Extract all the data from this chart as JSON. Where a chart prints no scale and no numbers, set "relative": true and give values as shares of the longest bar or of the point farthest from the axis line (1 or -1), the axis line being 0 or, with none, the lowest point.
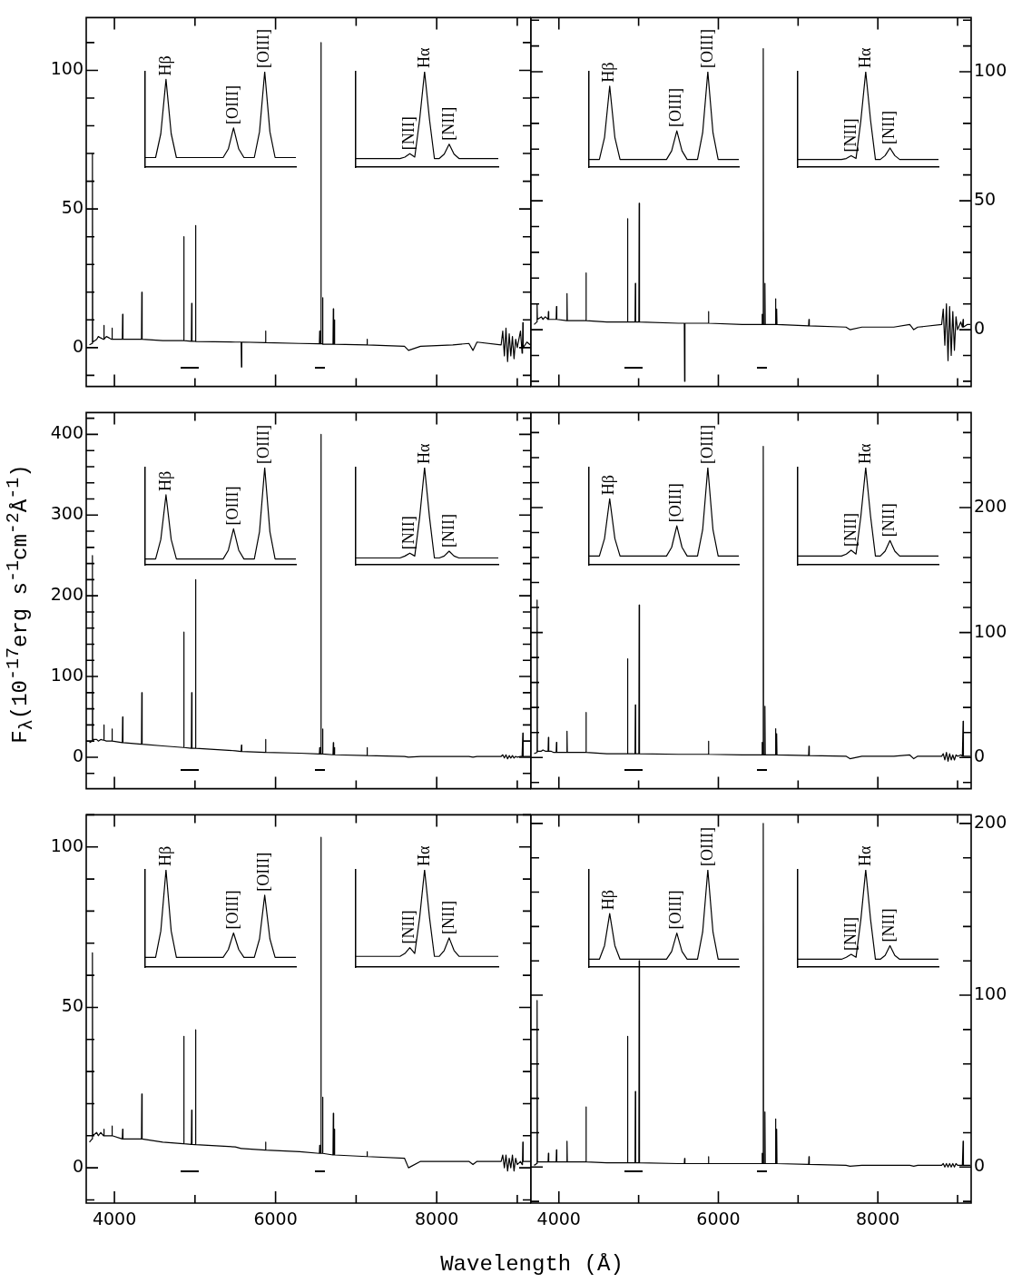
{
  "chart_data": [
    {
      "type": "line",
      "x": [
        3690,
        3723,
        3727,
        3731,
        3780,
        3800,
        3830,
        3865,
        3869,
        3873,
        3900,
        3935,
        3966,
        3970,
        3974,
        4098,
        4102,
        4106,
        4336,
        4340,
        4344,
        4600,
        4857,
        4861,
        4865,
        4955,
        4959,
        4963,
        5003,
        5007,
        5011,
        5500,
        5573,
        5577,
        5581,
        5872,
        5876,
        5880,
        6300,
        6544,
        6548,
        6552,
        6559,
        6563,
        6567,
        6580,
        6584,
        6588,
        6713,
        6717,
        6721,
        6727,
        6731,
        6735,
        7132,
        7136,
        7140,
        7600,
        7650,
        7800,
        8200,
        8400,
        8450,
        8500,
        8800,
        8820,
        8840,
        8860,
        8880,
        8900,
        8920,
        8940,
        8960,
        8980,
        9000,
        9040,
        9060,
        9065,
        9069,
        9073,
        9120,
        9160
      ],
      "series": [
        {
          "color": "#000000",
          "values": [
            1,
            1.5,
            70,
            2,
            3,
            4,
            3.5,
            3,
            8,
            3,
            4,
            3.5,
            3,
            7,
            3,
            3,
            12,
            3,
            3,
            20,
            3,
            2.5,
            2.5,
            40,
            2.5,
            2.3,
            16,
            2.3,
            2.3,
            44,
            2.2,
            2,
            2,
            -7,
            2,
            1.8,
            6,
            1.8,
            1.5,
            1.4,
            6,
            1.4,
            1.4,
            110,
            1.4,
            1.4,
            18,
            1.2,
            1.2,
            14,
            1.2,
            1.2,
            10,
            1.2,
            1,
            3,
            1,
            0.5,
            -1,
            0.5,
            1,
            1.5,
            -1,
            2,
            1,
            6,
            -3,
            7,
            -5,
            5,
            -3,
            4,
            -4,
            3,
            0,
            6,
            -2,
            0,
            9,
            0,
            2,
            1
          ]
        }
      ],
      "xlim": [
        3650,
        9170
      ],
      "xticks": [
        4000,
        {
          "value": 5000,
          "label": null
        },
        6000,
        {
          "value": 7000,
          "label": null
        },
        8000,
        {
          "value": 9000,
          "label": null
        }
      ],
      "ylim": [
        -14,
        119
      ],
      "yticks": [
        {
          "value": -10,
          "label": null
        },
        0,
        {
          "value": 10,
          "label": null
        },
        {
          "value": 20,
          "label": null
        },
        {
          "value": 30,
          "label": null
        },
        {
          "value": 40,
          "label": null
        },
        50,
        {
          "value": 60,
          "label": null
        },
        {
          "value": 70,
          "label": null
        },
        {
          "value": 80,
          "label": null
        },
        {
          "value": 90,
          "label": null
        },
        100,
        {
          "value": 110,
          "label": null
        }
      ],
      "tick_labels": "y"
    },
    {
      "type": "line",
      "relative": true,
      "tick_labels": false,
      "categories": [
        null,
        null,
        null,
        null,
        null,
        null,
        null,
        null,
        null,
        null,
        null,
        null,
        null,
        null,
        null,
        null,
        null,
        null,
        null,
        null,
        null,
        null,
        null,
        null,
        null,
        null,
        null,
        null,
        null,
        null
      ],
      "series": [
        {
          "color": "#000000",
          "values": [
            0.1,
            0.1,
            0.1,
            0.35,
            0.92,
            0.35,
            0.1,
            0.1,
            0.1,
            0.1,
            0.1,
            0.1,
            0.1,
            0.1,
            0.1,
            0.1,
            0.19,
            0.41,
            0.19,
            0.1,
            0.1,
            0.1,
            0.37,
            1,
            0.37,
            0.1,
            0.1,
            0.1,
            0.1,
            0.1
          ]
        }
      ],
      "annotations": [
        "Hβ",
        "[OIII]",
        "[OIII]"
      ]
    },
    {
      "type": "line",
      "relative": true,
      "tick_labels": false,
      "categories": [
        null,
        null,
        null,
        null,
        null,
        null,
        null,
        null,
        null,
        null,
        null,
        null,
        null,
        null,
        null,
        null,
        null,
        null,
        null,
        null,
        null,
        null,
        null,
        null,
        null,
        null,
        null,
        null,
        null,
        null
      ],
      "series": [
        {
          "color": "#000000",
          "values": [
            0.09,
            0.09,
            0.09,
            0.09,
            0.09,
            0.09,
            0.09,
            0.09,
            0.09,
            0.09,
            0.105,
            0.14,
            0.105,
            0.5,
            1,
            0.5,
            0.09,
            0.09,
            0.135,
            0.24,
            0.135,
            0.09,
            0.09,
            0.09,
            0.09,
            0.09,
            0.09,
            0.09,
            0.09,
            0.09
          ]
        }
      ],
      "annotations": [
        "[NII]",
        "Hα",
        "[NII]"
      ]
    },
    {
      "type": "line",
      "x": [
        3690,
        3723,
        3727,
        3731,
        3780,
        3800,
        3830,
        3865,
        3869,
        3873,
        3900,
        3935,
        3966,
        3970,
        3974,
        4098,
        4102,
        4106,
        4336,
        4340,
        4344,
        4600,
        4857,
        4861,
        4865,
        4955,
        4959,
        4963,
        5003,
        5007,
        5011,
        5500,
        5573,
        5577,
        5581,
        5872,
        5876,
        5880,
        6300,
        6544,
        6548,
        6552,
        6559,
        6563,
        6567,
        6580,
        6584,
        6588,
        6713,
        6717,
        6721,
        6727,
        6731,
        6735,
        7132,
        7136,
        7140,
        7600,
        7650,
        7800,
        8200,
        8400,
        8450,
        8500,
        8800,
        8820,
        8840,
        8860,
        8880,
        8900,
        8920,
        8940,
        8960,
        8980,
        9000,
        9040,
        9060,
        9065,
        9069,
        9073,
        9120,
        9160
      ],
      "series": [
        {
          "color": "#000000",
          "values": [
            2,
            3,
            10,
            4,
            5,
            4,
            5,
            4,
            7,
            4,
            4,
            4,
            4,
            9,
            4,
            3.5,
            14,
            3.5,
            3.5,
            22,
            3.5,
            3,
            3,
            43,
            3,
            3,
            18,
            3,
            3,
            49,
            3,
            2.5,
            2.5,
            -20,
            2.5,
            2.5,
            7,
            2.5,
            2,
            2,
            6,
            2,
            2,
            109,
            2,
            2,
            18,
            2,
            2,
            12,
            2,
            2,
            8,
            2,
            1.5,
            4,
            1.5,
            1,
            0,
            1,
            1,
            2,
            0,
            1,
            2,
            8,
            -6,
            10,
            -12,
            9,
            -10,
            7,
            -8,
            5,
            0,
            3,
            1,
            1,
            4,
            1,
            2,
            2
          ]
        }
      ],
      "xlim": [
        3650,
        9170
      ],
      "xticks": [
        4000,
        {
          "value": 5000,
          "label": null
        },
        6000,
        {
          "value": 7000,
          "label": null
        },
        8000,
        {
          "value": 9000,
          "label": null
        }
      ],
      "ylim": [
        -22,
        121
      ],
      "yticks": [
        {
          "value": -20,
          "label": null
        },
        {
          "value": -10,
          "label": null
        },
        0,
        {
          "value": 10,
          "label": null
        },
        {
          "value": 20,
          "label": null
        },
        {
          "value": 30,
          "label": null
        },
        {
          "value": 40,
          "label": null
        },
        50,
        {
          "value": 60,
          "label": null
        },
        {
          "value": 70,
          "label": null
        },
        {
          "value": 80,
          "label": null
        },
        {
          "value": 90,
          "label": null
        },
        100,
        {
          "value": 110,
          "label": null
        },
        {
          "value": 120,
          "label": null
        }
      ],
      "tick_labels": "y"
    },
    {
      "type": "line",
      "relative": true,
      "tick_labels": false,
      "categories": [
        null,
        null,
        null,
        null,
        null,
        null,
        null,
        null,
        null,
        null,
        null,
        null,
        null,
        null,
        null,
        null,
        null,
        null,
        null,
        null,
        null,
        null,
        null,
        null,
        null,
        null,
        null,
        null,
        null,
        null
      ],
      "series": [
        {
          "color": "#000000",
          "values": [
            0.08,
            0.08,
            0.08,
            0.31,
            0.85,
            0.31,
            0.08,
            0.08,
            0.08,
            0.08,
            0.08,
            0.08,
            0.08,
            0.08,
            0.08,
            0.08,
            0.17,
            0.38,
            0.17,
            0.08,
            0.08,
            0.08,
            0.36,
            1,
            0.36,
            0.08,
            0.08,
            0.08,
            0.08,
            0.08
          ]
        }
      ],
      "annotations": [
        "Hβ",
        "[OIII]",
        "[OIII]"
      ]
    },
    {
      "type": "line",
      "relative": true,
      "tick_labels": false,
      "categories": [
        null,
        null,
        null,
        null,
        null,
        null,
        null,
        null,
        null,
        null,
        null,
        null,
        null,
        null,
        null,
        null,
        null,
        null,
        null,
        null,
        null,
        null,
        null,
        null,
        null,
        null,
        null,
        null,
        null,
        null
      ],
      "series": [
        {
          "color": "#000000",
          "values": [
            0.08,
            0.08,
            0.08,
            0.08,
            0.08,
            0.08,
            0.08,
            0.08,
            0.08,
            0.08,
            0.09,
            0.12,
            0.09,
            0.49,
            1,
            0.49,
            0.08,
            0.08,
            0.12,
            0.2,
            0.12,
            0.08,
            0.08,
            0.08,
            0.08,
            0.08,
            0.08,
            0.08,
            0.08,
            0.08
          ]
        }
      ],
      "annotations": [
        "[NII]",
        "Hα",
        "[NII]"
      ]
    },
    {
      "type": "line",
      "ylabel": "F$_{λ}$(10$^{-17}$erg s$^{-1}$cm$^{-2}$Å$^{-1}$)",
      "x": [
        3690,
        3723,
        3727,
        3731,
        3780,
        3800,
        3830,
        3865,
        3869,
        3873,
        3900,
        3935,
        3966,
        3970,
        3974,
        4098,
        4102,
        4106,
        4336,
        4340,
        4344,
        4600,
        4857,
        4861,
        4865,
        4955,
        4959,
        4963,
        5003,
        5007,
        5011,
        5500,
        5573,
        5577,
        5581,
        5872,
        5876,
        5880,
        6300,
        6544,
        6548,
        6552,
        6559,
        6563,
        6567,
        6580,
        6584,
        6588,
        6713,
        6717,
        6721,
        6727,
        6731,
        6735,
        7132,
        7136,
        7140,
        7600,
        7650,
        7800,
        8200,
        8400,
        8450,
        8500,
        8800,
        8820,
        8840,
        8860,
        8880,
        8900,
        8920,
        8940,
        8960,
        8980,
        9000,
        9040,
        9060,
        9065,
        9069,
        9073,
        9120,
        9160
      ],
      "series": [
        {
          "color": "#000000",
          "values": [
            18,
            20,
            250,
            22,
            22,
            20,
            22,
            21,
            40,
            21,
            20,
            20,
            20,
            35,
            20,
            18,
            50,
            18,
            16,
            80,
            16,
            14,
            12,
            155,
            12,
            11,
            80,
            11,
            11,
            220,
            11,
            8,
            7,
            15,
            7,
            6,
            22,
            6,
            5,
            4,
            12,
            4,
            4,
            400,
            4,
            4,
            35,
            4,
            3,
            18,
            3,
            3,
            12,
            3,
            2,
            12,
            2,
            1,
            0,
            1,
            1,
            1,
            0,
            1,
            1,
            3,
            -1,
            3,
            -2,
            2,
            -1,
            2,
            -1,
            1,
            0,
            1,
            1,
            1,
            30,
            1,
            1,
            1
          ]
        }
      ],
      "xlim": [
        3650,
        9170
      ],
      "xticks": [
        4000,
        {
          "value": 5000,
          "label": null
        },
        6000,
        {
          "value": 7000,
          "label": null
        },
        8000,
        {
          "value": 9000,
          "label": null
        }
      ],
      "ylim": [
        -39,
        427
      ],
      "yticks": [
        {
          "value": -20,
          "label": null
        },
        0,
        {
          "value": 20,
          "label": null
        },
        {
          "value": 40,
          "label": null
        },
        {
          "value": 60,
          "label": null
        },
        {
          "value": 80,
          "label": null
        },
        100,
        {
          "value": 120,
          "label": null
        },
        {
          "value": 140,
          "label": null
        },
        {
          "value": 160,
          "label": null
        },
        {
          "value": 180,
          "label": null
        },
        200,
        {
          "value": 220,
          "label": null
        },
        {
          "value": 240,
          "label": null
        },
        {
          "value": 260,
          "label": null
        },
        {
          "value": 280,
          "label": null
        },
        300,
        {
          "value": 320,
          "label": null
        },
        {
          "value": 340,
          "label": null
        },
        {
          "value": 360,
          "label": null
        },
        {
          "value": 380,
          "label": null
        },
        400,
        {
          "value": 420,
          "label": null
        }
      ],
      "tick_labels": "y"
    },
    {
      "type": "line",
      "relative": true,
      "tick_labels": false,
      "categories": [
        null,
        null,
        null,
        null,
        null,
        null,
        null,
        null,
        null,
        null,
        null,
        null,
        null,
        null,
        null,
        null,
        null,
        null,
        null,
        null,
        null,
        null,
        null,
        null,
        null,
        null,
        null,
        null,
        null,
        null
      ],
      "series": [
        {
          "color": "#000000",
          "values": [
            0.06,
            0.06,
            0.06,
            0.26,
            0.72,
            0.26,
            0.06,
            0.06,
            0.06,
            0.06,
            0.06,
            0.06,
            0.06,
            0.06,
            0.06,
            0.06,
            0.15,
            0.37,
            0.15,
            0.06,
            0.06,
            0.06,
            0.34,
            1,
            0.34,
            0.06,
            0.06,
            0.06,
            0.06,
            0.06
          ]
        }
      ],
      "annotations": [
        "Hβ",
        "[OIII]",
        "[OIII]"
      ]
    },
    {
      "type": "line",
      "relative": true,
      "tick_labels": false,
      "categories": [
        null,
        null,
        null,
        null,
        null,
        null,
        null,
        null,
        null,
        null,
        null,
        null,
        null,
        null,
        null,
        null,
        null,
        null,
        null,
        null,
        null,
        null,
        null,
        null,
        null,
        null,
        null,
        null,
        null,
        null
      ],
      "series": [
        {
          "color": "#000000",
          "values": [
            0.07,
            0.07,
            0.07,
            0.07,
            0.07,
            0.07,
            0.07,
            0.07,
            0.07,
            0.07,
            0.09,
            0.12,
            0.09,
            0.49,
            1,
            0.49,
            0.07,
            0.07,
            0.09,
            0.14,
            0.09,
            0.07,
            0.07,
            0.07,
            0.07,
            0.07,
            0.07,
            0.07,
            0.07,
            0.07
          ]
        }
      ],
      "annotations": [
        "[NII]",
        "Hα",
        "[NII]"
      ]
    },
    {
      "type": "line",
      "x": [
        3690,
        3723,
        3727,
        3731,
        3780,
        3800,
        3830,
        3865,
        3869,
        3873,
        3900,
        3935,
        3966,
        3970,
        3974,
        4098,
        4102,
        4106,
        4336,
        4340,
        4344,
        4600,
        4857,
        4861,
        4865,
        4955,
        4959,
        4963,
        5003,
        5007,
        5011,
        5500,
        5573,
        5577,
        5581,
        5872,
        5876,
        5880,
        6300,
        6544,
        6548,
        6552,
        6559,
        6563,
        6567,
        6580,
        6584,
        6588,
        6713,
        6717,
        6721,
        6727,
        6731,
        6735,
        7132,
        7136,
        7140,
        7600,
        7650,
        7800,
        8200,
        8400,
        8450,
        8500,
        8800,
        8820,
        8840,
        8860,
        8880,
        8900,
        8920,
        8940,
        8960,
        8980,
        9000,
        9040,
        9060,
        9065,
        9069,
        9073,
        9120,
        9160
      ],
      "series": [
        {
          "color": "#000000",
          "values": [
            3,
            4,
            126,
            5,
            5,
            6,
            5,
            5,
            16,
            5,
            5,
            4,
            4,
            12,
            4,
            4,
            21,
            4,
            4,
            36,
            4,
            3,
            3,
            79,
            3,
            3,
            42,
            3,
            3,
            122,
            3,
            2.5,
            2.5,
            2.5,
            2.5,
            2.5,
            13,
            2.5,
            2,
            2,
            12,
            2,
            2,
            249,
            2,
            2,
            41,
            2,
            2,
            23,
            2,
            2,
            19,
            2,
            1.5,
            9,
            1.5,
            1,
            -1,
            1,
            1,
            2,
            -1,
            1,
            1,
            3,
            -2,
            4,
            -3,
            3,
            -2,
            2,
            -2,
            2,
            1,
            2,
            1,
            1,
            29,
            1,
            1,
            1
          ]
        }
      ],
      "xlim": [
        3650,
        9170
      ],
      "xticks": [
        4000,
        {
          "value": 5000,
          "label": null
        },
        6000,
        {
          "value": 7000,
          "label": null
        },
        8000,
        {
          "value": 9000,
          "label": null
        }
      ],
      "ylim": [
        -25,
        276
      ],
      "yticks": [
        {
          "value": -20,
          "label": null
        },
        0,
        {
          "value": 20,
          "label": null
        },
        {
          "value": 40,
          "label": null
        },
        {
          "value": 60,
          "label": null
        },
        {
          "value": 80,
          "label": null
        },
        100,
        {
          "value": 120,
          "label": null
        },
        {
          "value": 140,
          "label": null
        },
        {
          "value": 160,
          "label": null
        },
        {
          "value": 180,
          "label": null
        },
        200,
        {
          "value": 220,
          "label": null
        },
        {
          "value": 240,
          "label": null
        },
        {
          "value": 260,
          "label": null
        }
      ],
      "tick_labels": "y"
    },
    {
      "type": "line",
      "relative": true,
      "tick_labels": false,
      "categories": [
        null,
        null,
        null,
        null,
        null,
        null,
        null,
        null,
        null,
        null,
        null,
        null,
        null,
        null,
        null,
        null,
        null,
        null,
        null,
        null,
        null,
        null,
        null,
        null,
        null,
        null,
        null,
        null,
        null,
        null
      ],
      "series": [
        {
          "color": "#000000",
          "values": [
            0.09,
            0.09,
            0.09,
            0.27,
            0.68,
            0.27,
            0.09,
            0.09,
            0.09,
            0.09,
            0.09,
            0.09,
            0.09,
            0.09,
            0.09,
            0.09,
            0.18,
            0.4,
            0.18,
            0.09,
            0.09,
            0.09,
            0.36,
            1,
            0.36,
            0.09,
            0.09,
            0.09,
            0.09,
            0.09
          ]
        }
      ],
      "annotations": [
        "Hβ",
        "[OIII]",
        "[OIII]"
      ]
    },
    {
      "type": "line",
      "relative": true,
      "tick_labels": false,
      "categories": [
        null,
        null,
        null,
        null,
        null,
        null,
        null,
        null,
        null,
        null,
        null,
        null,
        null,
        null,
        null,
        null,
        null,
        null,
        null,
        null,
        null,
        null,
        null,
        null,
        null,
        null,
        null,
        null,
        null,
        null
      ],
      "series": [
        {
          "color": "#000000",
          "values": [
            0.09,
            0.09,
            0.09,
            0.09,
            0.09,
            0.09,
            0.09,
            0.09,
            0.09,
            0.09,
            0.11,
            0.15,
            0.11,
            0.5,
            1,
            0.5,
            0.09,
            0.09,
            0.14,
            0.25,
            0.14,
            0.09,
            0.09,
            0.09,
            0.09,
            0.09,
            0.09,
            0.09,
            0.09,
            0.09
          ]
        }
      ],
      "annotations": [
        "[NII]",
        "Hα",
        "[NII]"
      ]
    },
    {
      "type": "line",
      "xlabel": "Wavelength (Å)",
      "x": [
        3690,
        3723,
        3727,
        3731,
        3780,
        3800,
        3830,
        3865,
        3869,
        3873,
        3900,
        3935,
        3966,
        3970,
        3974,
        4098,
        4102,
        4106,
        4336,
        4340,
        4344,
        4600,
        4857,
        4861,
        4865,
        4955,
        4959,
        4963,
        5003,
        5007,
        5011,
        5500,
        5573,
        5577,
        5581,
        5872,
        5876,
        5880,
        6300,
        6544,
        6548,
        6552,
        6559,
        6563,
        6567,
        6580,
        6584,
        6588,
        6713,
        6717,
        6721,
        6727,
        6731,
        6735,
        7132,
        7136,
        7140,
        7600,
        7650,
        7800,
        8200,
        8400,
        8450,
        8500,
        8800,
        8820,
        8840,
        8860,
        8880,
        8900,
        8920,
        8940,
        8960,
        8980,
        9000,
        9040,
        9060,
        9065,
        9069,
        9073,
        9120,
        9160
      ],
      "series": [
        {
          "color": "#000000",
          "values": [
            8,
            9,
            67,
            10,
            11,
            10,
            11,
            10,
            12,
            10,
            10,
            10,
            10,
            13,
            10,
            9,
            12,
            9,
            9,
            23,
            9,
            8,
            7.5,
            41,
            7.5,
            7.3,
            18,
            7.3,
            7.2,
            43,
            7.2,
            6.5,
            6,
            6,
            6,
            5.5,
            8,
            5.5,
            5,
            4.5,
            7,
            4.5,
            4.5,
            103,
            4.5,
            4.5,
            22,
            4.5,
            4,
            17,
            4,
            4,
            12,
            4,
            3.5,
            5,
            3.5,
            3,
            0,
            2,
            2,
            2,
            1,
            2,
            2,
            4,
            0,
            4,
            -1,
            3,
            0,
            4,
            -1,
            3,
            1,
            2,
            1,
            2,
            8,
            2,
            2,
            2
          ]
        }
      ],
      "xlim": [
        3650,
        9170
      ],
      "xticks": [
        4000,
        {
          "value": 5000,
          "label": null
        },
        6000,
        {
          "value": 7000,
          "label": null
        },
        8000,
        {
          "value": 9000,
          "label": null
        }
      ],
      "ylim": [
        -11,
        110
      ],
      "yticks": [
        {
          "value": -10,
          "label": null
        },
        0,
        {
          "value": 10,
          "label": null
        },
        {
          "value": 20,
          "label": null
        },
        {
          "value": 30,
          "label": null
        },
        {
          "value": 40,
          "label": null
        },
        50,
        {
          "value": 60,
          "label": null
        },
        {
          "value": 70,
          "label": null
        },
        {
          "value": 80,
          "label": null
        },
        {
          "value": 90,
          "label": null
        },
        100,
        {
          "value": 110,
          "label": null
        }
      ]
    },
    {
      "type": "line",
      "relative": true,
      "tick_labels": false,
      "categories": [
        null,
        null,
        null,
        null,
        null,
        null,
        null,
        null,
        null,
        null,
        null,
        null,
        null,
        null,
        null,
        null,
        null,
        null,
        null,
        null,
        null,
        null,
        null,
        null,
        null,
        null,
        null,
        null,
        null,
        null
      ],
      "series": [
        {
          "color": "#000000",
          "values": [
            0.1,
            0.1,
            0.1,
            0.37,
            1,
            0.37,
            0.1,
            0.1,
            0.1,
            0.1,
            0.1,
            0.1,
            0.1,
            0.1,
            0.1,
            0.1,
            0.18,
            0.35,
            0.18,
            0.1,
            0.1,
            0.1,
            0.29,
            0.74,
            0.29,
            0.1,
            0.1,
            0.1,
            0.1,
            0.1
          ]
        }
      ],
      "annotations": [
        "Hβ",
        "[OIII]",
        "[OIII]"
      ]
    },
    {
      "type": "line",
      "relative": true,
      "tick_labels": false,
      "categories": [
        null,
        null,
        null,
        null,
        null,
        null,
        null,
        null,
        null,
        null,
        null,
        null,
        null,
        null,
        null,
        null,
        null,
        null,
        null,
        null,
        null,
        null,
        null,
        null,
        null,
        null,
        null,
        null,
        null,
        null
      ],
      "series": [
        {
          "color": "#000000",
          "values": [
            0.11,
            0.11,
            0.11,
            0.11,
            0.11,
            0.11,
            0.11,
            0.11,
            0.11,
            0.11,
            0.14,
            0.2,
            0.14,
            0.51,
            1,
            0.51,
            0.11,
            0.11,
            0.17,
            0.3,
            0.17,
            0.11,
            0.11,
            0.11,
            0.11,
            0.11,
            0.11,
            0.11,
            0.11,
            0.11
          ]
        }
      ],
      "annotations": [
        "[NII]",
        "Hα",
        "[NII]"
      ]
    },
    {
      "type": "line",
      "x": [
        3690,
        3723,
        3727,
        3731,
        3780,
        3800,
        3830,
        3865,
        3869,
        3873,
        3900,
        3935,
        3966,
        3970,
        3974,
        4098,
        4102,
        4106,
        4336,
        4340,
        4344,
        4600,
        4857,
        4861,
        4865,
        4955,
        4959,
        4963,
        5003,
        5007,
        5011,
        5500,
        5573,
        5577,
        5581,
        5872,
        5876,
        5880,
        6300,
        6544,
        6548,
        6552,
        6559,
        6563,
        6567,
        6580,
        6584,
        6588,
        6713,
        6717,
        6721,
        6727,
        6731,
        6735,
        7132,
        7136,
        7140,
        7600,
        7650,
        7800,
        8200,
        8400,
        8450,
        8500,
        8800,
        8820,
        8840,
        8860,
        8880,
        8900,
        8920,
        8940,
        8960,
        8980,
        9000,
        9040,
        9060,
        9065,
        9069,
        9073,
        9120,
        9160
      ],
      "series": [
        {
          "color": "#000000",
          "values": [
            1,
            2,
            97,
            3,
            3,
            3,
            3,
            3,
            8,
            3,
            3,
            3,
            3,
            10,
            3,
            3,
            15,
            3,
            3,
            35,
            3,
            2.5,
            2.5,
            76,
            2.5,
            2.5,
            44,
            2.5,
            2.5,
            120,
            2.5,
            2,
            2,
            5,
            2,
            2,
            6,
            2,
            2,
            2,
            8,
            2,
            2,
            200,
            2,
            2,
            32,
            2,
            2,
            28,
            2,
            2,
            22,
            2,
            1.5,
            6,
            1.5,
            1,
            0.5,
            1,
            1,
            1,
            0.5,
            1,
            1,
            2,
            0,
            2,
            0,
            2,
            0,
            2,
            0,
            2,
            1,
            1,
            1,
            1,
            15,
            1,
            1,
            1
          ]
        }
      ],
      "xlim": [
        3650,
        9170
      ],
      "xticks": [
        4000,
        {
          "value": 5000,
          "label": null
        },
        6000,
        {
          "value": 7000,
          "label": null
        },
        8000,
        {
          "value": 9000,
          "label": null
        }
      ],
      "ylim": [
        -21,
        205
      ],
      "yticks": [
        {
          "value": -20,
          "label": null
        },
        0,
        {
          "value": 20,
          "label": null
        },
        {
          "value": 40,
          "label": null
        },
        {
          "value": 60,
          "label": null
        },
        {
          "value": 80,
          "label": null
        },
        100,
        {
          "value": 120,
          "label": null
        },
        {
          "value": 140,
          "label": null
        },
        {
          "value": 160,
          "label": null
        },
        {
          "value": 180,
          "label": null
        },
        200
      ]
    },
    {
      "type": "line",
      "relative": true,
      "tick_labels": false,
      "categories": [
        null,
        null,
        null,
        null,
        null,
        null,
        null,
        null,
        null,
        null,
        null,
        null,
        null,
        null,
        null,
        null,
        null,
        null,
        null,
        null,
        null,
        null,
        null,
        null,
        null,
        null,
        null,
        null,
        null,
        null
      ],
      "series": [
        {
          "color": "#000000",
          "values": [
            0.08,
            0.08,
            0.08,
            0.22,
            0.55,
            0.22,
            0.08,
            0.08,
            0.08,
            0.08,
            0.08,
            0.08,
            0.08,
            0.08,
            0.08,
            0.08,
            0.16,
            0.35,
            0.16,
            0.08,
            0.08,
            0.08,
            0.36,
            1,
            0.36,
            0.08,
            0.08,
            0.08,
            0.08,
            0.08
          ]
        }
      ],
      "annotations": [
        "Hβ",
        "[OIII]",
        "[OIII]"
      ]
    },
    {
      "type": "line",
      "relative": true,
      "tick_labels": false,
      "categories": [
        null,
        null,
        null,
        null,
        null,
        null,
        null,
        null,
        null,
        null,
        null,
        null,
        null,
        null,
        null,
        null,
        null,
        null,
        null,
        null,
        null,
        null,
        null,
        null,
        null,
        null,
        null,
        null,
        null,
        null
      ],
      "series": [
        {
          "color": "#000000",
          "values": [
            0.08,
            0.08,
            0.08,
            0.08,
            0.08,
            0.08,
            0.08,
            0.08,
            0.08,
            0.08,
            0.1,
            0.13,
            0.1,
            0.49,
            1,
            0.49,
            0.08,
            0.08,
            0.12,
            0.22,
            0.12,
            0.08,
            0.08,
            0.08,
            0.08,
            0.08,
            0.08,
            0.08,
            0.08,
            0.08
          ]
        }
      ],
      "annotations": [
        "[NII]",
        "Hα",
        "[NII]"
      ]
    }
  ]
}
